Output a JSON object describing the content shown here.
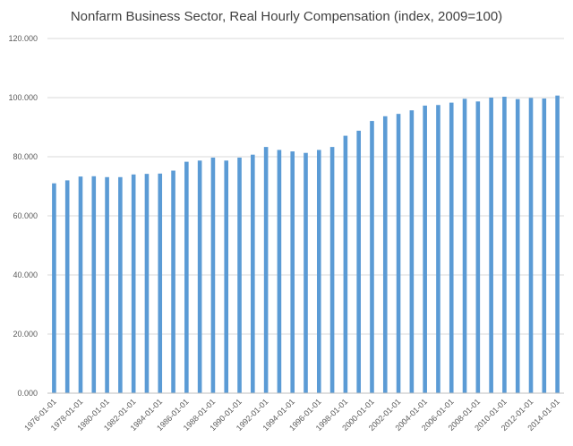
{
  "chart_data": {
    "type": "bar",
    "title": "Nonfarm Business Sector, Real Hourly Compensation (index, 2009=100)",
    "xlabel": "",
    "ylabel": "",
    "ylim": [
      0,
      120
    ],
    "yticks": [
      "0.000",
      "20.000",
      "40.000",
      "60.000",
      "80.000",
      "100.000",
      "120.000"
    ],
    "grid": true,
    "legend": "none",
    "bar_color": "#5B9BD5",
    "grid_color": "#D9D9D9",
    "categories": [
      "1976-01-01",
      "1977-01-01",
      "1978-01-01",
      "1979-01-01",
      "1980-01-01",
      "1981-01-01",
      "1982-01-01",
      "1983-01-01",
      "1984-01-01",
      "1985-01-01",
      "1986-01-01",
      "1987-01-01",
      "1988-01-01",
      "1989-01-01",
      "1990-01-01",
      "1991-01-01",
      "1992-01-01",
      "1993-01-01",
      "1994-01-01",
      "1995-01-01",
      "1996-01-01",
      "1997-01-01",
      "1998-01-01",
      "1999-01-01",
      "2000-01-01",
      "2001-01-01",
      "2002-01-01",
      "2003-01-01",
      "2004-01-01",
      "2005-01-01",
      "2006-01-01",
      "2007-01-01",
      "2008-01-01",
      "2009-01-01",
      "2010-01-01",
      "2011-01-01",
      "2012-01-01",
      "2013-01-01",
      "2014-01-01"
    ],
    "x_tick_labels": [
      "1976-01-01",
      "1978-01-01",
      "1980-01-01",
      "1982-01-01",
      "1984-01-01",
      "1986-01-01",
      "1988-01-01",
      "1990-01-01",
      "1992-01-01",
      "1994-01-01",
      "1996-01-01",
      "1998-01-01",
      "2000-01-01",
      "2002-01-01",
      "2004-01-01",
      "2006-01-01",
      "2008-01-01",
      "2010-01-01",
      "2012-01-01",
      "2014-01-01"
    ],
    "values": [
      71.0,
      72.0,
      73.3,
      73.4,
      73.1,
      73.1,
      74.0,
      74.2,
      74.3,
      75.3,
      78.3,
      78.7,
      79.7,
      78.7,
      79.7,
      80.7,
      83.3,
      82.3,
      81.8,
      81.3,
      82.3,
      83.3,
      87.1,
      88.8,
      92.1,
      93.7,
      94.5,
      95.7,
      97.3,
      97.5,
      98.3,
      99.6,
      98.7,
      100.0,
      100.3,
      99.5,
      99.9,
      99.7,
      100.7
    ]
  }
}
